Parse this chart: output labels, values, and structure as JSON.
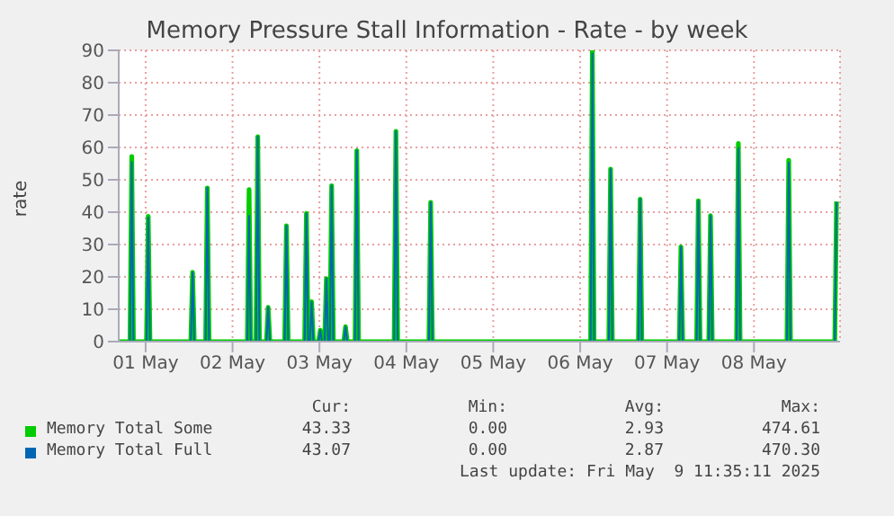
{
  "chart_data": {
    "type": "line",
    "title": "Memory Pressure Stall Information - Rate - by week",
    "ylabel": "rate",
    "x": [
      "2025-04-30T16:34",
      "2025-04-30T19:41",
      "2025-04-30T20:10",
      "2025-04-30T20:38",
      "2025-05-01T00:14",
      "2025-05-01T00:43",
      "2025-05-01T01:12",
      "2025-05-01T12:29",
      "2025-05-01T12:58",
      "2025-05-01T13:26",
      "2025-05-01T16:34",
      "2025-05-01T17:02",
      "2025-05-01T17:31",
      "2025-05-02T04:05",
      "2025-05-02T04:34",
      "2025-05-02T05:02",
      "2025-05-02T06:29",
      "2025-05-02T06:58",
      "2025-05-02T07:26",
      "2025-05-02T09:22",
      "2025-05-02T09:50",
      "2025-05-02T10:19",
      "2025-05-02T14:24",
      "2025-05-02T14:53",
      "2025-05-02T15:22",
      "2025-05-02T19:55",
      "2025-05-02T20:24",
      "2025-05-02T20:53",
      "2025-05-02T21:22",
      "2025-05-02T21:50",
      "2025-05-02T22:19",
      "2025-05-02T23:46",
      "2025-05-03T00:14",
      "2025-05-03T00:43",
      "2025-05-03T01:26",
      "2025-05-03T01:55",
      "2025-05-03T02:24",
      "2025-05-03T02:53",
      "2025-05-03T03:22",
      "2025-05-03T03:50",
      "2025-05-03T06:43",
      "2025-05-03T07:12",
      "2025-05-03T07:41",
      "2025-05-03T09:50",
      "2025-05-03T10:19",
      "2025-05-03T10:48",
      "2025-05-03T20:38",
      "2025-05-03T21:07",
      "2025-05-03T21:36",
      "2025-05-04T06:14",
      "2025-05-04T06:43",
      "2025-05-04T07:12",
      "2025-05-06T02:53",
      "2025-05-06T03:22",
      "2025-05-06T03:50",
      "2025-05-06T07:55",
      "2025-05-06T08:24",
      "2025-05-06T08:53",
      "2025-05-06T16:05",
      "2025-05-06T16:34",
      "2025-05-06T17:02",
      "2025-05-07T03:22",
      "2025-05-07T03:50",
      "2025-05-07T04:19",
      "2025-05-07T08:10",
      "2025-05-07T08:38",
      "2025-05-07T09:07",
      "2025-05-07T11:31",
      "2025-05-07T12:00",
      "2025-05-07T12:29",
      "2025-05-07T19:12",
      "2025-05-07T19:41",
      "2025-05-07T20:10",
      "2025-05-08T09:07",
      "2025-05-08T09:36",
      "2025-05-08T10:05",
      "2025-05-08T22:19",
      "2025-05-08T22:48"
    ],
    "series": [
      {
        "name": "Memory Total Some",
        "color": "#00cc00",
        "values": [
          0,
          0,
          57.2,
          0,
          0,
          38.7,
          0,
          0,
          21.4,
          0,
          0,
          47.5,
          0,
          0,
          47.0,
          0,
          0,
          63.3,
          0,
          0,
          10.6,
          0,
          0,
          35.8,
          0,
          0,
          39.6,
          0,
          0,
          12.3,
          0,
          0,
          3.5,
          0,
          0,
          19.5,
          0,
          0,
          48.2,
          0,
          0,
          4.6,
          0,
          0,
          59.0,
          0,
          0,
          65.0,
          0,
          0,
          43.0,
          0,
          0,
          89.8,
          0,
          0,
          53.3,
          0,
          0,
          44.0,
          0,
          0,
          29.3,
          0,
          0,
          43.5,
          0,
          0,
          38.9,
          0,
          0,
          61.2,
          0,
          0,
          56.0,
          0,
          0,
          43.3
        ]
      },
      {
        "name": "Memory Total Full",
        "color": "#0066b3",
        "values": [
          0,
          0,
          55.5,
          0,
          0,
          38.3,
          0,
          0,
          21.4,
          0,
          0,
          47.5,
          0,
          0,
          38.9,
          0,
          0,
          63.3,
          0,
          0,
          10.6,
          0,
          0,
          35.8,
          0,
          0,
          39.6,
          0,
          0,
          12.3,
          0,
          0,
          3.5,
          0,
          0,
          19.5,
          0,
          0,
          48.2,
          0,
          0,
          4.6,
          0,
          0,
          59.0,
          0,
          0,
          65.0,
          0,
          0,
          43.0,
          0,
          0,
          89.0,
          0,
          0,
          53.3,
          0,
          0,
          44.0,
          0,
          0,
          29.3,
          0,
          0,
          43.5,
          0,
          0,
          38.9,
          0,
          0,
          59.8,
          0,
          0,
          55.3,
          0,
          0,
          43.1
        ]
      }
    ],
    "xlim": [
      "2025-04-30T16:34",
      "2025-05-08T23:46"
    ],
    "xticks": [
      {
        "value": "2025-05-01",
        "label": "01 May"
      },
      {
        "value": "2025-05-02",
        "label": "02 May"
      },
      {
        "value": "2025-05-03",
        "label": "03 May"
      },
      {
        "value": "2025-05-04",
        "label": "04 May"
      },
      {
        "value": "2025-05-05",
        "label": "05 May"
      },
      {
        "value": "2025-05-06",
        "label": "06 May"
      },
      {
        "value": "2025-05-07",
        "label": "07 May"
      },
      {
        "value": "2025-05-08",
        "label": "08 May"
      }
    ],
    "ylim": [
      0,
      90
    ],
    "yticks": [
      0,
      10,
      20,
      30,
      40,
      50,
      60,
      70,
      80,
      90
    ],
    "grid": true,
    "legend": "bottom",
    "marker": "none",
    "line_style": "solid",
    "annotations": [
      "Cur:",
      "Min:",
      "Avg:",
      "Max:",
      "43.33",
      "0.00",
      "2.93",
      "474.61",
      "43.07",
      "0.00",
      "2.87",
      "470.30",
      "Last update: Fri May  9 11:35:11 2025"
    ]
  }
}
